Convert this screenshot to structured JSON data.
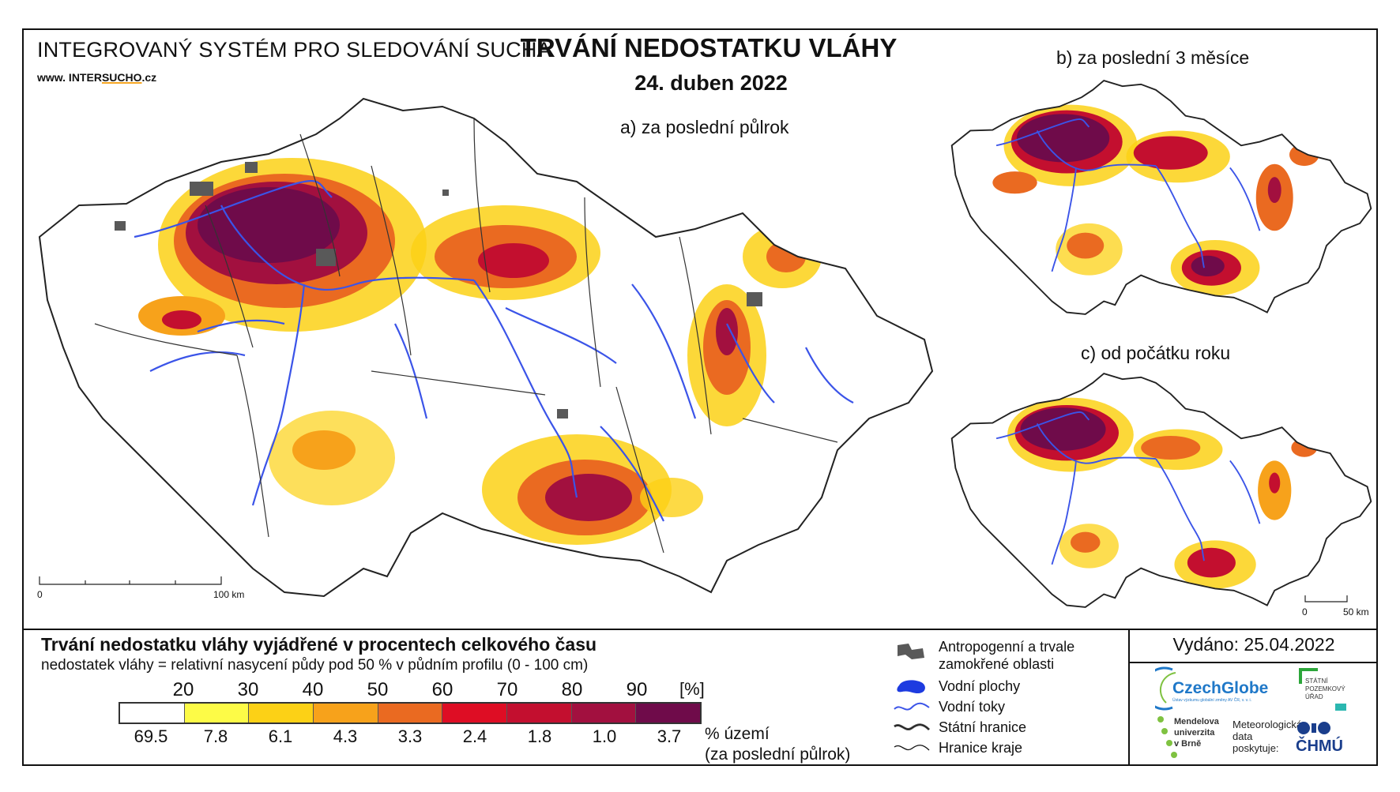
{
  "header": {
    "system_title": "INTEGROVANÝ SYSTÉM PRO SLEDOVÁNÍ SUCHA",
    "www_prefix": "www. INTER",
    "www_highlight": "SUCHO",
    "www_suffix": ".cz",
    "main_title": "TRVÁNÍ NEDOSTATKU VLÁHY",
    "date": "24. duben 2022"
  },
  "maps": {
    "a_label": "a) za poslední půlrok",
    "b_label": "b) za poslední 3 měsíce",
    "c_label": "c) od počátku roku",
    "a_scale": {
      "start": "0",
      "end": "100 km"
    },
    "c_scale": {
      "start": "0",
      "end": "50 km"
    }
  },
  "legend": {
    "title": "Trvání nedostatku vláhy vyjádřené v procentech celkového času",
    "subtitle": "nedostatek vláhy = relativní nasycení půdy pod 50 % v půdním profilu (0 - 100 cm)",
    "ticks": [
      "20",
      "30",
      "40",
      "50",
      "60",
      "70",
      "80",
      "90"
    ],
    "unit": "[%]",
    "colors": [
      "#ffffff",
      "#fdfb47",
      "#fcd116",
      "#f7a21b",
      "#ea6a21",
      "#de0d24",
      "#c30f2f",
      "#a2103f",
      "#6f0b4a"
    ],
    "percentages": [
      "69.5",
      "7.8",
      "6.1",
      "4.3",
      "3.3",
      "2.4",
      "1.8",
      "1.0",
      "3.7"
    ],
    "pct_caption_line1": "% území",
    "pct_caption_line2": "(za poslední půlrok)"
  },
  "symbols": {
    "anthropogenic_line1": "Antropogenní a trvale",
    "anthropogenic_line2": "zamokřené oblasti",
    "water_bodies": "Vodní plochy",
    "rivers": "Vodní toky",
    "state_border": "Státní hranice",
    "region_border": "Hranice kraje",
    "anthropogenic_color": "#595959",
    "water_color": "#1d3be0",
    "river_color": "#3b54e8"
  },
  "publisher": {
    "issued": "Vydáno: 25.04.2022",
    "czechglobe": "CzechGlobe",
    "czechglobe_sub": "Ústav výzkumu globální změny AV ČR, v. v. i.",
    "spu_line1": "STÁTNÍ",
    "spu_line2": "POZEMKOVÝ",
    "spu_line3": "ÚŘAD",
    "mendel_line1": "Mendelova",
    "mendel_line2": "univerzita",
    "mendel_line3": "v Brně",
    "meteo_line1": "Meteorologická",
    "meteo_line2": "data",
    "meteo_line3": "poskytuje:",
    "chmu": "ČHMÚ"
  }
}
